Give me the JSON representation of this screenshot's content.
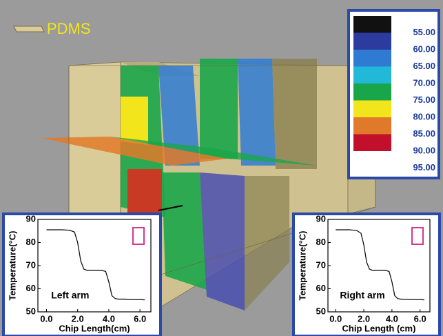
{
  "material_label": "PDMS",
  "colorbar": {
    "colors": [
      "#111111",
      "#2b3c9e",
      "#2f7bd4",
      "#22b8d8",
      "#19a54a",
      "#f2e51c",
      "#e07a2a",
      "#c2102c"
    ],
    "labels": [
      {
        "value": 55,
        "label": "55.00"
      },
      {
        "value": 60,
        "label": "60.00"
      },
      {
        "value": 65,
        "label": "65.00"
      },
      {
        "value": 70,
        "label": "70.00"
      },
      {
        "value": 75,
        "label": "75.00"
      },
      {
        "value": 80,
        "label": "80.00"
      },
      {
        "value": 85,
        "label": "85.00"
      },
      {
        "value": 90,
        "label": "90.00"
      },
      {
        "value": 95,
        "label": "95.00"
      }
    ]
  },
  "chart_data": [
    {
      "type": "line",
      "annotation": "Left arm",
      "xlabel": "Chip Length(cm)",
      "ylabel": "Temperature(°C)",
      "x": [
        0,
        0.5,
        1.0,
        1.5,
        1.8,
        2.0,
        2.2,
        2.4,
        2.6,
        3.0,
        3.5,
        3.8,
        4.0,
        4.2,
        4.4,
        4.6,
        5.0,
        5.5,
        6.0,
        6.3
      ],
      "series": [
        {
          "name": "Left arm",
          "color": "#111111",
          "values": [
            85.5,
            85.5,
            85.5,
            85.3,
            84.5,
            80,
            72,
            68.5,
            68,
            68,
            68,
            67.5,
            63,
            57,
            55.8,
            55.5,
            55.5,
            55.3,
            55.3,
            55.2
          ]
        }
      ],
      "xlim": [
        -0.55,
        6.7
      ],
      "ylim": [
        50,
        90
      ],
      "xticks": [
        {
          "value": 0,
          "label": "0.0"
        },
        {
          "value": 2,
          "label": "2.0"
        },
        {
          "value": 4,
          "label": "4.0"
        },
        {
          "value": 6,
          "label": "6.0"
        }
      ],
      "yticks": [
        50,
        60,
        70,
        80,
        90
      ]
    },
    {
      "type": "line",
      "annotation": "Right arm",
      "xlabel": "Chip Length (cm)",
      "ylabel": "Temperature(°C)",
      "x": [
        0,
        0.5,
        1.0,
        1.5,
        1.8,
        2.0,
        2.2,
        2.4,
        2.6,
        3.0,
        3.5,
        3.8,
        4.0,
        4.2,
        4.4,
        4.6,
        5.0,
        5.5,
        6.0,
        6.3
      ],
      "series": [
        {
          "name": "Right arm",
          "color": "#111111",
          "values": [
            85.5,
            85.5,
            85.5,
            85.2,
            84,
            79,
            71.5,
            68.5,
            68,
            68,
            68,
            67.5,
            63,
            57,
            55.8,
            55.5,
            55.4,
            55.3,
            55.3,
            55.2
          ]
        }
      ],
      "xlim": [
        -0.55,
        6.7
      ],
      "ylim": [
        50,
        90
      ],
      "xticks": [
        {
          "value": 0,
          "label": "0.0"
        },
        {
          "value": 2,
          "label": "2.0"
        },
        {
          "value": 4,
          "label": "4.0"
        },
        {
          "value": 6,
          "label": "6.0"
        }
      ],
      "yticks": [
        50,
        60,
        70,
        80,
        90
      ]
    }
  ]
}
